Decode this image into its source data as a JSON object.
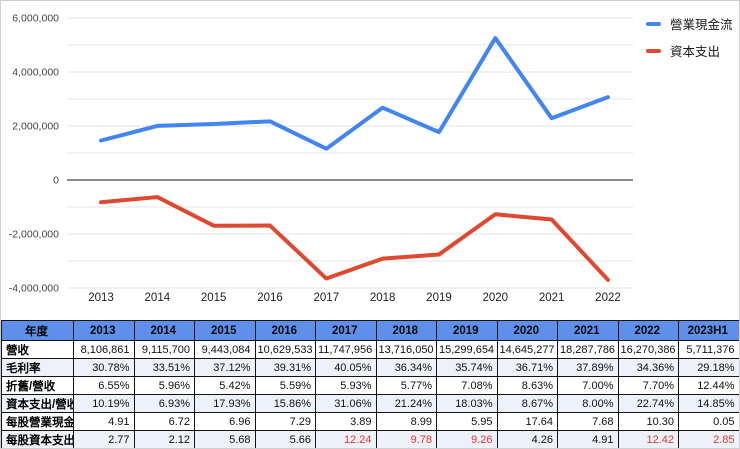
{
  "colors": {
    "blue": "#4285f4",
    "red": "#e0482f",
    "header_bg": "#5e8fea",
    "alt_row_bg": "#edf1f9",
    "grid": "#e4e4e4",
    "zero_line": "#646464",
    "red_text": "#e5362a"
  },
  "chart_data": {
    "type": "line",
    "x": [
      "2013",
      "2014",
      "2015",
      "2016",
      "2017",
      "2018",
      "2019",
      "2020",
      "2021",
      "2022"
    ],
    "series": [
      {
        "name": "營業現金流",
        "color": "#4285f4",
        "values": [
          1463000,
          2003000,
          2074000,
          2173000,
          1159000,
          2679000,
          1773000,
          5257000,
          2289000,
          3069000
        ]
      },
      {
        "name": "資本支出",
        "color": "#e0482f",
        "values": [
          -826000,
          -632000,
          -1693000,
          -1686000,
          -3649000,
          -2913000,
          -2759000,
          -1270000,
          -1463000,
          -3700000
        ]
      }
    ],
    "title": "",
    "xlabel": "",
    "ylabel": "",
    "ylim": [
      -4000000,
      6000000
    ],
    "ytick_step": 1000000,
    "ylabel_every": 2000000,
    "ytick_labels": [
      "6,000,000",
      "4,000,000",
      "2,000,000",
      "0",
      "-2,000,000",
      "-4,000,000"
    ],
    "grid": true,
    "legend_position": "top-right"
  },
  "legend": [
    {
      "label": "營業現金流",
      "color": "#4285f4"
    },
    {
      "label": "資本支出",
      "color": "#e0482f"
    }
  ],
  "table": {
    "corner_header": "年度",
    "year_headers": [
      "2013",
      "2014",
      "2015",
      "2016",
      "2017",
      "2018",
      "2019",
      "2020",
      "2021",
      "2022",
      "2023H1"
    ],
    "rows": [
      {
        "label": "營收",
        "values": [
          "8,106,861",
          "9,115,700",
          "9,443,084",
          "10,629,533",
          "11,747,956",
          "13,716,050",
          "15,299,654",
          "14,645,277",
          "18,287,786",
          "16,270,386",
          "5,711,376"
        ],
        "red_value_indices": []
      },
      {
        "label": "毛利率",
        "values": [
          "30.78%",
          "33.51%",
          "37.12%",
          "39.31%",
          "40.05%",
          "36.34%",
          "35.74%",
          "36.71%",
          "37.89%",
          "34.36%",
          "29.18%"
        ],
        "red_value_indices": []
      },
      {
        "label": "折舊/營收",
        "values": [
          "6.55%",
          "5.96%",
          "5.42%",
          "5.59%",
          "5.93%",
          "5.77%",
          "7.08%",
          "8.63%",
          "7.00%",
          "7.70%",
          "12.44%"
        ],
        "red_value_indices": []
      },
      {
        "label": "資本支出/營收",
        "values": [
          "10.19%",
          "6.93%",
          "17.93%",
          "15.86%",
          "31.06%",
          "21.24%",
          "18.03%",
          "8.67%",
          "8.00%",
          "22.74%",
          "14.85%"
        ],
        "red_value_indices": []
      },
      {
        "label": "每股營業現金",
        "values": [
          "4.91",
          "6.72",
          "6.96",
          "7.29",
          "3.89",
          "8.99",
          "5.95",
          "17.64",
          "7.68",
          "10.30",
          "0.05"
        ],
        "red_value_indices": []
      },
      {
        "label": "每股資本支出",
        "values": [
          "2.77",
          "2.12",
          "5.68",
          "5.66",
          "12.24",
          "9.78",
          "9.26",
          "4.26",
          "4.91",
          "12.42",
          "2.85"
        ],
        "red_value_indices": [
          4,
          5,
          6,
          9,
          10
        ]
      }
    ]
  }
}
